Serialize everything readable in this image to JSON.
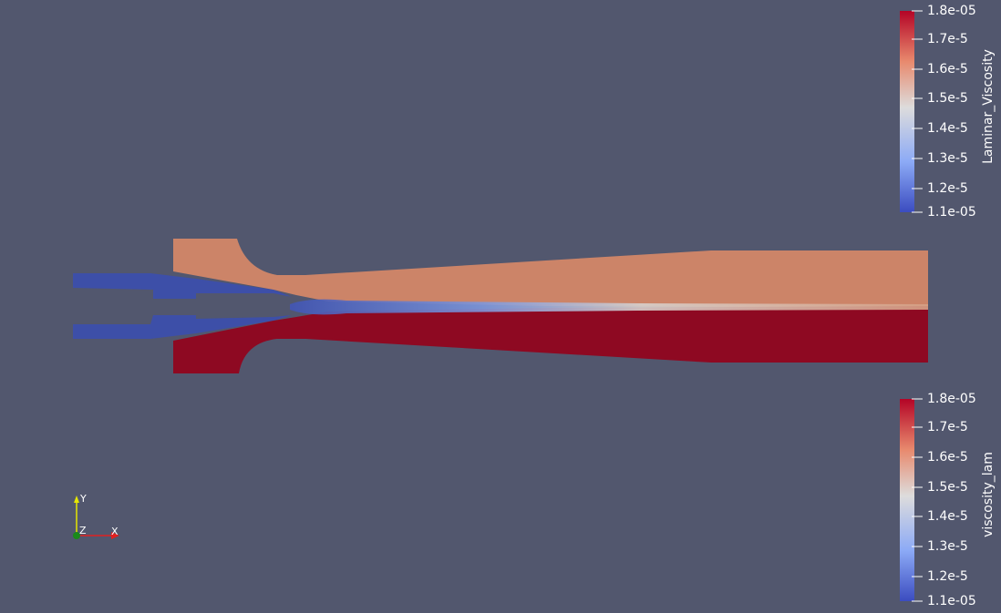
{
  "legends": [
    {
      "title": "Laminar_Viscosity",
      "ticks": [
        "1.8e-05",
        "1.7e-5",
        "1.6e-5",
        "1.5e-5",
        "1.4e-5",
        "1.3e-5",
        "1.2e-5",
        "1.1e-05"
      ]
    },
    {
      "title": "viscosity_lam",
      "ticks": [
        "1.8e-05",
        "1.7e-5",
        "1.6e-5",
        "1.5e-5",
        "1.4e-5",
        "1.3e-5",
        "1.2e-5",
        "1.1e-05"
      ]
    }
  ],
  "axes": {
    "x": "X",
    "y": "Y",
    "z": "Z"
  }
}
